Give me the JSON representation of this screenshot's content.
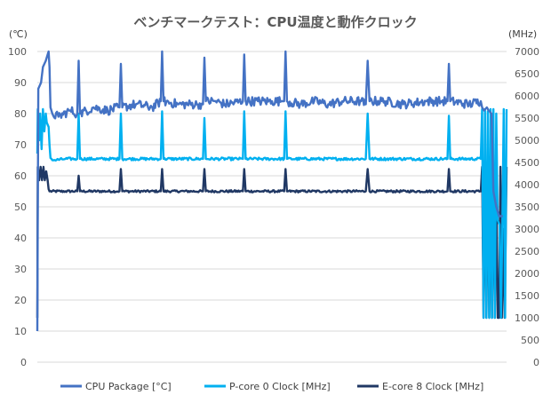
{
  "chart_data": {
    "type": "line",
    "title": "ベンチマークテスト：CPU温度と動作クロック",
    "y_left": {
      "unit": "(℃)",
      "min": 0,
      "max": 100,
      "step": 10,
      "ticks": [
        "0",
        "10",
        "20",
        "30",
        "40",
        "50",
        "60",
        "70",
        "80",
        "90",
        "100"
      ]
    },
    "y_right": {
      "unit": "(MHz)",
      "min": 0,
      "max": 7000,
      "step": 500,
      "ticks": [
        "0",
        "500",
        "1000",
        "1500",
        "2000",
        "2500",
        "3000",
        "3500",
        "4000",
        "4500",
        "5000",
        "5500",
        "6000",
        "6500",
        "7000"
      ]
    },
    "x_range": [
      0,
      1000
    ],
    "grid": "horizontal",
    "legend_position": "bottom",
    "series": [
      {
        "name": "CPU Package [°C]",
        "axis": "left",
        "color": "#4472C4",
        "base": 83,
        "noise": 1.5,
        "points": [
          [
            0,
            10
          ],
          [
            2,
            88
          ],
          [
            8,
            90
          ],
          [
            12,
            95
          ],
          [
            18,
            97
          ],
          [
            22,
            99
          ],
          [
            24,
            100
          ],
          [
            26,
            95
          ],
          [
            28,
            82
          ],
          [
            32,
            80
          ],
          [
            45,
            79
          ],
          [
            70,
            81
          ],
          [
            85,
            80
          ],
          [
            88,
            97
          ],
          [
            91,
            80
          ],
          [
            120,
            82
          ],
          [
            150,
            81
          ],
          [
            175,
            82
          ],
          [
            178,
            96
          ],
          [
            181,
            82
          ],
          [
            210,
            83
          ],
          [
            245,
            82
          ],
          [
            263,
            84
          ],
          [
            266,
            100
          ],
          [
            269,
            84
          ],
          [
            300,
            83
          ],
          [
            340,
            83
          ],
          [
            353,
            83
          ],
          [
            356,
            98
          ],
          [
            359,
            84
          ],
          [
            380,
            84
          ],
          [
            400,
            83
          ],
          [
            438,
            84
          ],
          [
            441,
            99
          ],
          [
            444,
            84
          ],
          [
            470,
            84
          ],
          [
            500,
            84
          ],
          [
            520,
            84
          ],
          [
            526,
            84
          ],
          [
            529,
            100
          ],
          [
            532,
            84
          ],
          [
            560,
            83
          ],
          [
            590,
            84
          ],
          [
            620,
            83
          ],
          [
            650,
            84
          ],
          [
            690,
            84
          ],
          [
            700,
            83
          ],
          [
            704,
            97
          ],
          [
            708,
            84
          ],
          [
            740,
            84
          ],
          [
            780,
            83
          ],
          [
            830,
            84
          ],
          [
            860,
            84
          ],
          [
            874,
            84
          ],
          [
            877,
            96
          ],
          [
            880,
            84
          ],
          [
            920,
            83
          ],
          [
            945,
            84
          ],
          [
            948,
            82
          ],
          [
            952,
            81
          ],
          [
            958,
            82
          ],
          [
            962,
            81
          ],
          [
            968,
            80
          ],
          [
            972,
            55
          ],
          [
            978,
            50
          ],
          [
            984,
            47
          ],
          [
            988,
            47
          ],
          [
            992,
            47
          ]
        ]
      },
      {
        "name": "P-core 0 Clock [MHz]",
        "axis": "right",
        "color": "#00B0F0",
        "base": 4580,
        "noise": 30,
        "points": [
          [
            0,
            4700
          ],
          [
            1,
            5700
          ],
          [
            4,
            5000
          ],
          [
            6,
            5600
          ],
          [
            9,
            4800
          ],
          [
            12,
            5700
          ],
          [
            15,
            5200
          ],
          [
            18,
            5600
          ],
          [
            20,
            5400
          ],
          [
            24,
            5300
          ],
          [
            26,
            4900
          ],
          [
            28,
            4600
          ],
          [
            35,
            4550
          ],
          [
            60,
            4580
          ],
          [
            85,
            4580
          ],
          [
            88,
            5600
          ],
          [
            91,
            4580
          ],
          [
            175,
            4580
          ],
          [
            178,
            5600
          ],
          [
            181,
            4580
          ],
          [
            263,
            4580
          ],
          [
            266,
            5650
          ],
          [
            269,
            4580
          ],
          [
            353,
            4580
          ],
          [
            356,
            5500
          ],
          [
            359,
            4580
          ],
          [
            438,
            4580
          ],
          [
            441,
            5650
          ],
          [
            444,
            4580
          ],
          [
            526,
            4580
          ],
          [
            529,
            5650
          ],
          [
            532,
            4580
          ],
          [
            700,
            4580
          ],
          [
            704,
            5600
          ],
          [
            708,
            4580
          ],
          [
            874,
            4580
          ],
          [
            877,
            5550
          ],
          [
            880,
            4580
          ],
          [
            945,
            4580
          ],
          [
            948,
            5700
          ],
          [
            951,
            1000
          ],
          [
            954,
            5700
          ],
          [
            957,
            1000
          ],
          [
            960,
            5650
          ],
          [
            963,
            1000
          ],
          [
            966,
            5700
          ],
          [
            969,
            1000
          ],
          [
            972,
            5700
          ],
          [
            975,
            1000
          ],
          [
            978,
            5600
          ],
          [
            981,
            3200
          ],
          [
            985,
            3100
          ],
          [
            988,
            1000
          ],
          [
            991,
            3000
          ],
          [
            994,
            5700
          ],
          [
            997,
            1000
          ],
          [
            1000,
            5700
          ]
        ]
      },
      {
        "name": "E-core 8 Clock [MHz]",
        "axis": "right",
        "color": "#203864",
        "base": 3850,
        "noise": 25,
        "points": [
          [
            0,
            1000
          ],
          [
            1,
            4400
          ],
          [
            4,
            4100
          ],
          [
            7,
            4400
          ],
          [
            10,
            4100
          ],
          [
            13,
            4400
          ],
          [
            16,
            4100
          ],
          [
            19,
            4300
          ],
          [
            22,
            4100
          ],
          [
            24,
            3900
          ],
          [
            26,
            3850
          ],
          [
            60,
            3850
          ],
          [
            85,
            3850
          ],
          [
            88,
            4200
          ],
          [
            91,
            3850
          ],
          [
            175,
            3850
          ],
          [
            178,
            4350
          ],
          [
            181,
            3850
          ],
          [
            263,
            3850
          ],
          [
            266,
            4350
          ],
          [
            269,
            3850
          ],
          [
            353,
            3850
          ],
          [
            356,
            4350
          ],
          [
            359,
            3850
          ],
          [
            438,
            3850
          ],
          [
            441,
            4350
          ],
          [
            444,
            3850
          ],
          [
            526,
            3850
          ],
          [
            529,
            4350
          ],
          [
            532,
            3850
          ],
          [
            700,
            3850
          ],
          [
            704,
            4350
          ],
          [
            708,
            3850
          ],
          [
            874,
            3850
          ],
          [
            877,
            4350
          ],
          [
            880,
            3850
          ],
          [
            945,
            3850
          ],
          [
            948,
            4400
          ],
          [
            951,
            1000
          ],
          [
            954,
            4400
          ],
          [
            957,
            1000
          ],
          [
            960,
            4400
          ],
          [
            963,
            1000
          ],
          [
            966,
            4400
          ],
          [
            969,
            1000
          ],
          [
            972,
            4400
          ],
          [
            975,
            1000
          ],
          [
            978,
            4400
          ],
          [
            981,
            1000
          ],
          [
            984,
            1000
          ],
          [
            987,
            4400
          ],
          [
            990,
            1000
          ],
          [
            993,
            3000
          ],
          [
            996,
            1000
          ],
          [
            1000,
            4400
          ]
        ]
      }
    ]
  }
}
